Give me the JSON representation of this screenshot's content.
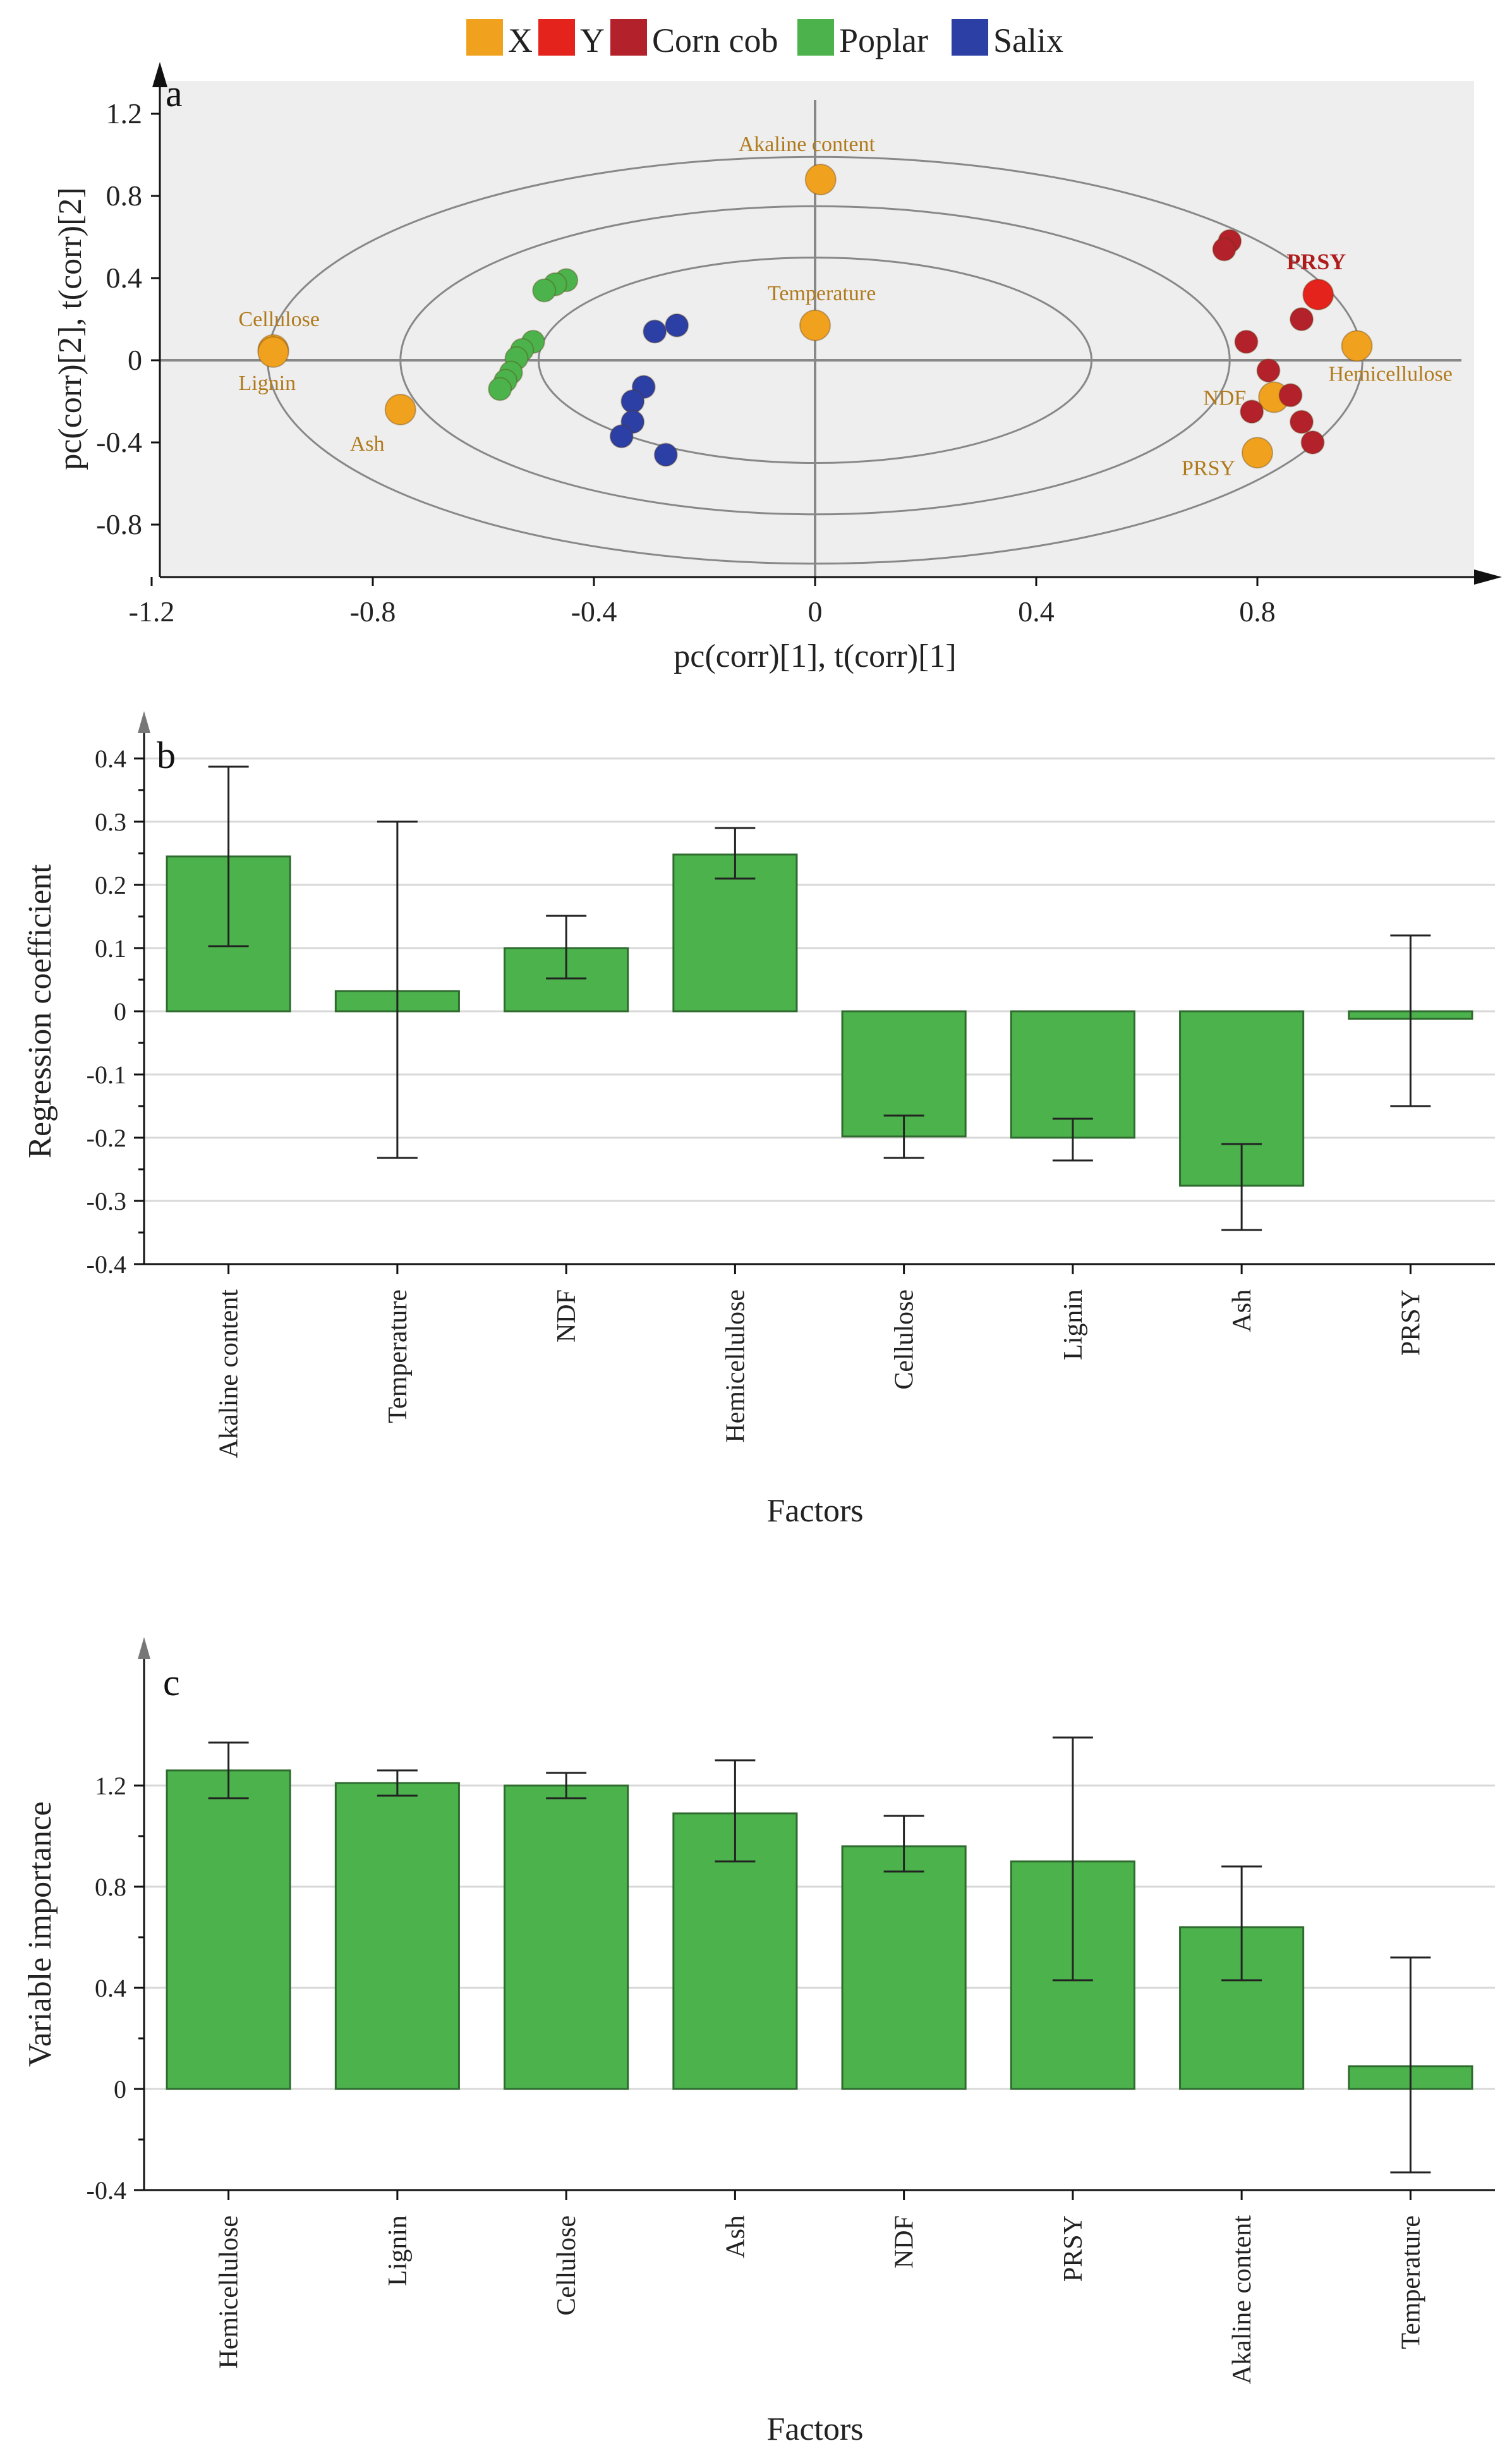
{
  "legend": {
    "items": [
      {
        "label": "X",
        "color": "#f0a21e"
      },
      {
        "label": "Y",
        "color": "#e3231c"
      },
      {
        "label": "Corn cob",
        "color": "#b3212b"
      },
      {
        "label": "Poplar",
        "color": "#4cb34c"
      },
      {
        "label": "Salix",
        "color": "#2b3fa5"
      }
    ]
  },
  "chart_data": [
    {
      "type": "scatter",
      "panel_label": "a",
      "xlabel": "pc(corr)[1], t(corr)[1]",
      "ylabel": "pc(corr)[2], t(corr)[2]",
      "xlim": [
        -1.2,
        1.2
      ],
      "ylim": [
        -1.0,
        1.35
      ],
      "xticks": [
        "-1.2",
        "-0.8",
        "-0.4",
        "0",
        "0.4",
        "0.8"
      ],
      "yticks": [
        "1.2",
        "0.8",
        "0.4",
        "0",
        "-0.4",
        "-0.8"
      ],
      "ellipse_radii": [
        [
          0.99,
          0.99
        ],
        [
          0.75,
          0.75
        ],
        [
          0.5,
          0.5
        ]
      ],
      "series": [
        {
          "name": "X",
          "color": "#f0a21e",
          "points": [
            {
              "x": 0.01,
              "y": 0.88,
              "label": "Akaline content"
            },
            {
              "x": 0.0,
              "y": 0.17,
              "label": "Temperature"
            },
            {
              "x": -0.98,
              "y": 0.05,
              "label": "Cellulose"
            },
            {
              "x": -0.98,
              "y": 0.04,
              "label": "Lignin"
            },
            {
              "x": -0.75,
              "y": -0.24,
              "label": "Ash"
            },
            {
              "x": 0.98,
              "y": 0.07,
              "label": "Hemicellulose"
            },
            {
              "x": 0.83,
              "y": -0.18,
              "label": "NDF"
            },
            {
              "x": 0.8,
              "y": -0.45,
              "label": "PRSY"
            }
          ]
        },
        {
          "name": "Y",
          "color": "#e3231c",
          "points": [
            {
              "x": 0.91,
              "y": 0.32,
              "label": "PRSY"
            }
          ]
        },
        {
          "name": "Corn cob",
          "color": "#b3212b",
          "points": [
            {
              "x": 0.75,
              "y": 0.58
            },
            {
              "x": 0.74,
              "y": 0.54
            },
            {
              "x": 0.88,
              "y": 0.2
            },
            {
              "x": 0.78,
              "y": 0.09
            },
            {
              "x": 0.82,
              "y": -0.05
            },
            {
              "x": 0.86,
              "y": -0.17
            },
            {
              "x": 0.79,
              "y": -0.25
            },
            {
              "x": 0.88,
              "y": -0.3
            },
            {
              "x": 0.9,
              "y": -0.4
            }
          ]
        },
        {
          "name": "Poplar",
          "color": "#4cb34c",
          "points": [
            {
              "x": -0.45,
              "y": 0.39
            },
            {
              "x": -0.47,
              "y": 0.37
            },
            {
              "x": -0.49,
              "y": 0.34
            },
            {
              "x": -0.51,
              "y": 0.09
            },
            {
              "x": -0.53,
              "y": 0.05
            },
            {
              "x": -0.54,
              "y": 0.01
            },
            {
              "x": -0.55,
              "y": -0.06
            },
            {
              "x": -0.56,
              "y": -0.1
            },
            {
              "x": -0.57,
              "y": -0.14
            }
          ]
        },
        {
          "name": "Salix",
          "color": "#2b3fa5",
          "points": [
            {
              "x": -0.25,
              "y": 0.17
            },
            {
              "x": -0.29,
              "y": 0.14
            },
            {
              "x": -0.31,
              "y": -0.13
            },
            {
              "x": -0.33,
              "y": -0.2
            },
            {
              "x": -0.33,
              "y": -0.3
            },
            {
              "x": -0.35,
              "y": -0.37
            },
            {
              "x": -0.27,
              "y": -0.46
            }
          ]
        }
      ]
    },
    {
      "type": "bar",
      "panel_label": "b",
      "xlabel": "Factors",
      "ylabel": "Regression coefficient",
      "ylim": [
        -0.4,
        0.4
      ],
      "yticks": [
        "0.4",
        "0.3",
        "0.2",
        "0.1",
        "0",
        "-0.1",
        "-0.2",
        "-0.3",
        "-0.4"
      ],
      "categories": [
        "Akaline content",
        "Temperature",
        "NDF",
        "Hemicellulose",
        "Cellulose",
        "Lignin",
        "Ash",
        "PRSY"
      ],
      "values": [
        0.245,
        0.032,
        0.1,
        0.248,
        -0.198,
        -0.2,
        -0.276,
        -0.012
      ],
      "error_low": [
        0.103,
        -0.232,
        0.052,
        0.21,
        -0.232,
        -0.236,
        -0.346,
        -0.15
      ],
      "error_high": [
        0.387,
        0.3,
        0.151,
        0.29,
        -0.165,
        -0.17,
        -0.21,
        0.12
      ],
      "color": "#4cb34c"
    },
    {
      "type": "bar",
      "panel_label": "c",
      "xlabel": "Factors",
      "ylabel": "Variable importance",
      "ylim": [
        -0.4,
        1.6
      ],
      "yticks": [
        "1.2",
        "0.8",
        "0.4",
        "0",
        "-0.4"
      ],
      "categories": [
        "Hemicellulose",
        "Lignin",
        "Cellulose",
        "Ash",
        "NDF",
        "PRSY",
        "Akaline content",
        "Temperature"
      ],
      "values": [
        1.26,
        1.21,
        1.2,
        1.09,
        0.96,
        0.9,
        0.64,
        0.09
      ],
      "error_low": [
        1.15,
        1.16,
        1.15,
        0.9,
        0.86,
        0.43,
        0.43,
        -0.33
      ],
      "error_high": [
        1.37,
        1.26,
        1.25,
        1.3,
        1.08,
        1.39,
        0.88,
        0.52
      ],
      "color": "#4cb34c"
    }
  ]
}
